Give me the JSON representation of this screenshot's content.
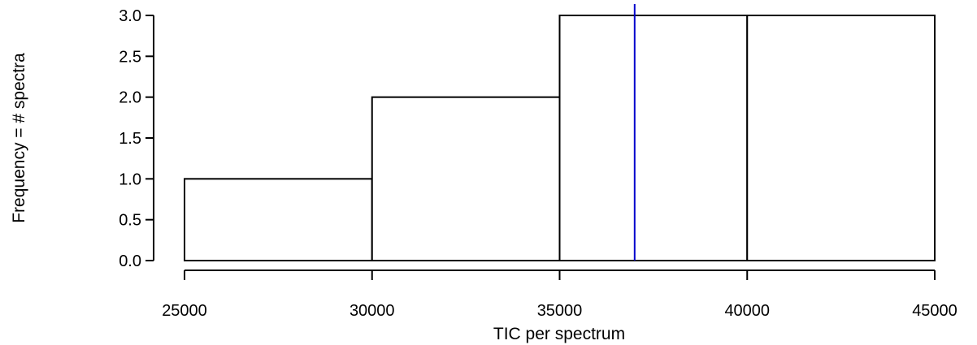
{
  "chart_data": {
    "type": "bar",
    "subtype": "histogram",
    "bins": [
      {
        "from": 25000,
        "to": 30000,
        "count": 1
      },
      {
        "from": 30000,
        "to": 35000,
        "count": 2
      },
      {
        "from": 35000,
        "to": 40000,
        "count": 3
      },
      {
        "from": 40000,
        "to": 45000,
        "count": 3
      }
    ],
    "reference_line": {
      "x": 37000,
      "color": "#0000cc"
    },
    "xlabel": "TIC per spectrum",
    "ylabel": "Frequency = # spectra",
    "xlim": [
      25000,
      45000
    ],
    "ylim": [
      0,
      3
    ],
    "x_ticks": [
      "25000",
      "30000",
      "35000",
      "40000",
      "45000"
    ],
    "y_ticks": [
      "0.0",
      "0.5",
      "1.0",
      "1.5",
      "2.0",
      "2.5",
      "3.0"
    ],
    "grid": false,
    "legend": "none",
    "bar_fill": "#ffffff",
    "bar_stroke": "#000000"
  }
}
